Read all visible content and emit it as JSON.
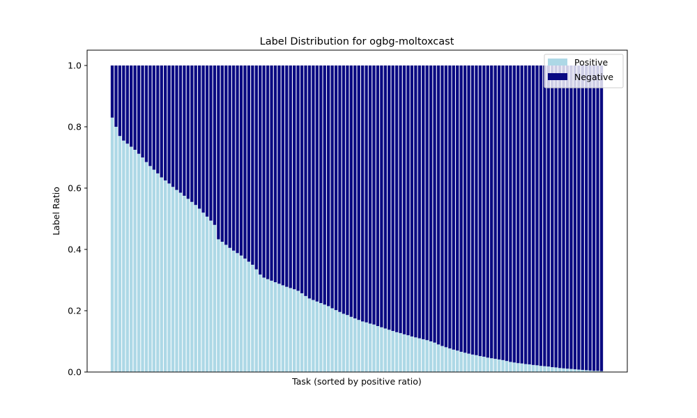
{
  "chart_data": {
    "type": "bar",
    "stacked": true,
    "title": "Label Distribution for ogbg-moltoxcast",
    "xlabel": "Task (sorted by positive ratio)",
    "ylabel": "Label Ratio",
    "ylim": [
      0,
      1.05
    ],
    "yticks": [
      "0.0",
      "0.2",
      "0.4",
      "0.6",
      "0.8",
      "1.0"
    ],
    "legend_position": "top-right",
    "grid": false,
    "series": [
      {
        "name": "Positive",
        "color": "#add8e6",
        "values": [
          0.83,
          0.8,
          0.77,
          0.755,
          0.745,
          0.735,
          0.725,
          0.712,
          0.7,
          0.685,
          0.672,
          0.66,
          0.648,
          0.635,
          0.625,
          0.615,
          0.604,
          0.594,
          0.585,
          0.575,
          0.565,
          0.555,
          0.545,
          0.533,
          0.52,
          0.507,
          0.494,
          0.48,
          0.433,
          0.425,
          0.415,
          0.405,
          0.396,
          0.388,
          0.38,
          0.37,
          0.36,
          0.35,
          0.335,
          0.318,
          0.308,
          0.303,
          0.298,
          0.293,
          0.288,
          0.283,
          0.278,
          0.274,
          0.27,
          0.265,
          0.257,
          0.248,
          0.24,
          0.235,
          0.23,
          0.225,
          0.22,
          0.215,
          0.208,
          0.202,
          0.196,
          0.19,
          0.186,
          0.18,
          0.175,
          0.17,
          0.165,
          0.162,
          0.158,
          0.155,
          0.15,
          0.146,
          0.142,
          0.138,
          0.134,
          0.13,
          0.127,
          0.123,
          0.12,
          0.116,
          0.113,
          0.11,
          0.107,
          0.104,
          0.1,
          0.096,
          0.09,
          0.085,
          0.081,
          0.077,
          0.073,
          0.07,
          0.066,
          0.063,
          0.06,
          0.057,
          0.055,
          0.052,
          0.05,
          0.047,
          0.045,
          0.043,
          0.041,
          0.039,
          0.036,
          0.033,
          0.031,
          0.029,
          0.028,
          0.026,
          0.025,
          0.023,
          0.022,
          0.02,
          0.019,
          0.018,
          0.016,
          0.015,
          0.013,
          0.012,
          0.011,
          0.01,
          0.009,
          0.008,
          0.007,
          0.006,
          0.005,
          0.004,
          0.004,
          0.003
        ]
      },
      {
        "name": "Negative",
        "color": "#0a0a82",
        "values": [
          0.17,
          0.2,
          0.23,
          0.245,
          0.255,
          0.265,
          0.275,
          0.288,
          0.3,
          0.315,
          0.328,
          0.34,
          0.352,
          0.365,
          0.375,
          0.385,
          0.396,
          0.406,
          0.415,
          0.425,
          0.435,
          0.445,
          0.455,
          0.467,
          0.48,
          0.493,
          0.506,
          0.52,
          0.567,
          0.575,
          0.585,
          0.595,
          0.604,
          0.612,
          0.62,
          0.63,
          0.64,
          0.65,
          0.665,
          0.682,
          0.692,
          0.697,
          0.702,
          0.707,
          0.712,
          0.717,
          0.722,
          0.726,
          0.73,
          0.735,
          0.743,
          0.752,
          0.76,
          0.765,
          0.77,
          0.775,
          0.78,
          0.785,
          0.792,
          0.798,
          0.804,
          0.81,
          0.814,
          0.82,
          0.825,
          0.83,
          0.835,
          0.838,
          0.842,
          0.845,
          0.85,
          0.854,
          0.858,
          0.862,
          0.866,
          0.87,
          0.873,
          0.877,
          0.88,
          0.884,
          0.887,
          0.89,
          0.893,
          0.896,
          0.9,
          0.904,
          0.91,
          0.915,
          0.919,
          0.923,
          0.927,
          0.93,
          0.934,
          0.937,
          0.94,
          0.943,
          0.945,
          0.948,
          0.95,
          0.953,
          0.955,
          0.957,
          0.959,
          0.961,
          0.964,
          0.967,
          0.969,
          0.971,
          0.972,
          0.974,
          0.975,
          0.977,
          0.978,
          0.98,
          0.981,
          0.982,
          0.984,
          0.985,
          0.987,
          0.988,
          0.989,
          0.99,
          0.991,
          0.992,
          0.993,
          0.994,
          0.995,
          0.996,
          0.996,
          0.997
        ]
      }
    ]
  }
}
